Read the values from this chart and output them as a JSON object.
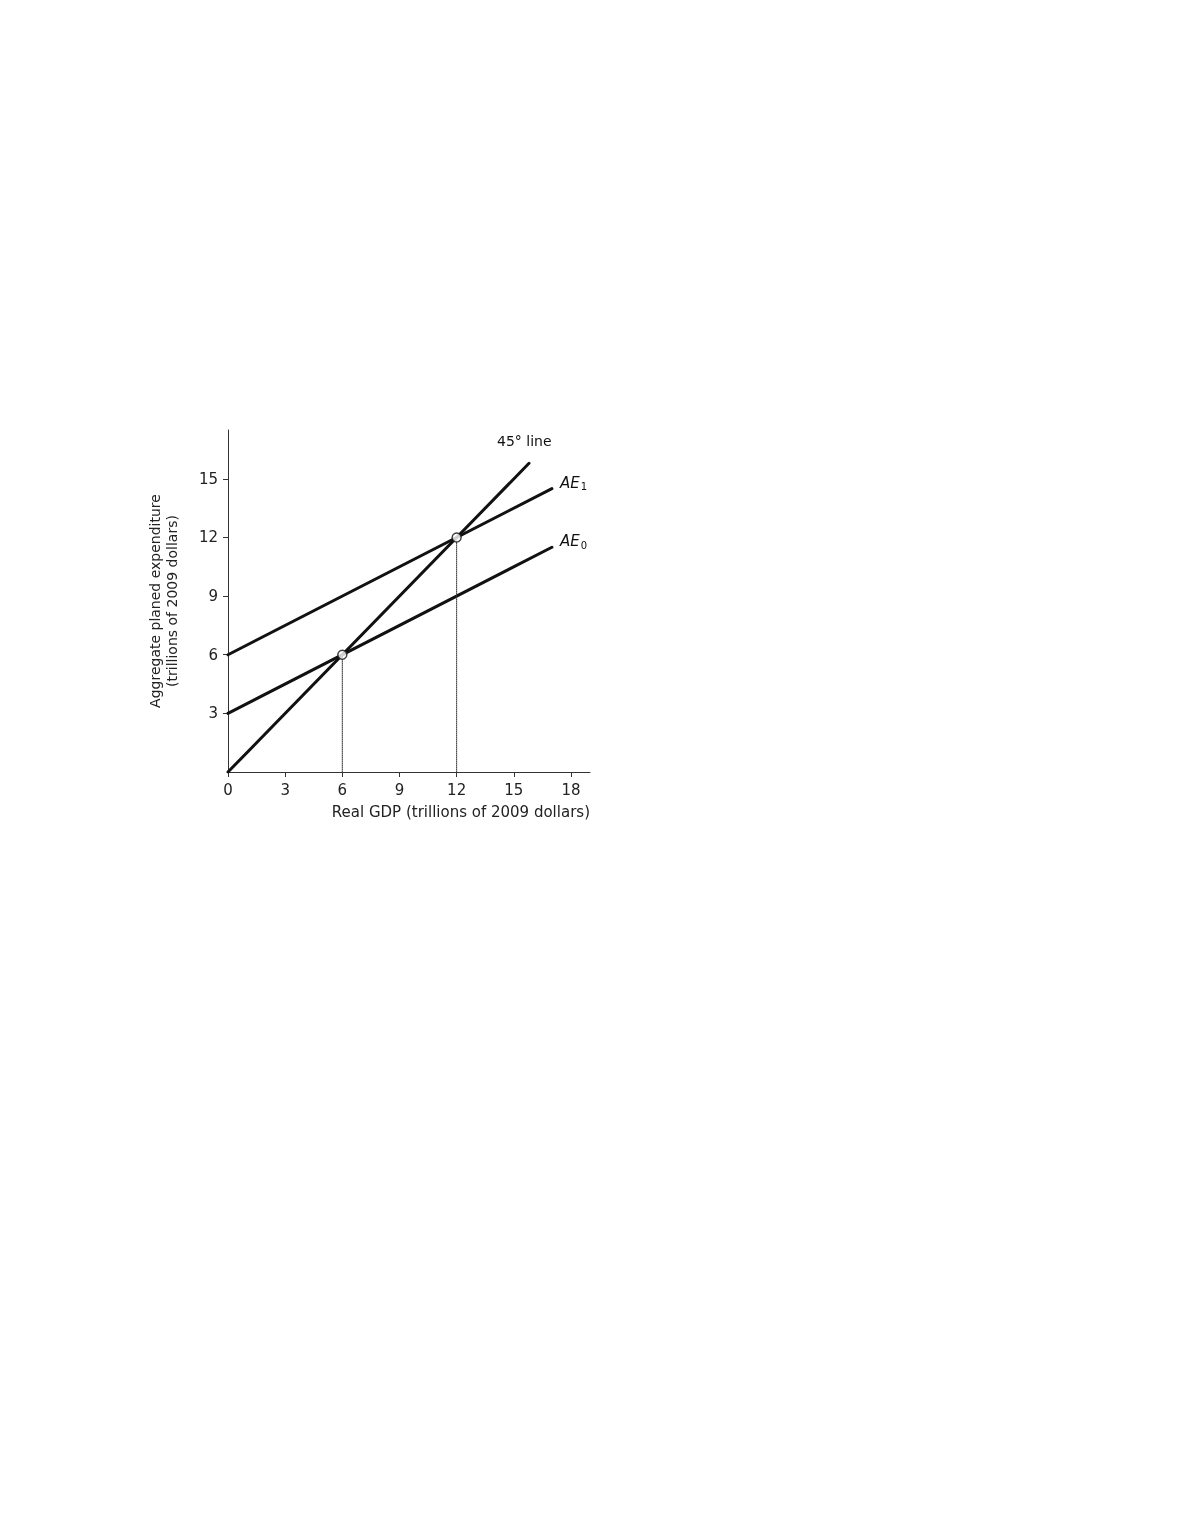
{
  "chart_data": {
    "type": "line",
    "xlabel": "Real GDP (trillions of 2009 dollars)",
    "ylabel": "Aggregate planed expenditure\n(trillions of 2009 dollars)",
    "xlim": [
      0,
      19
    ],
    "xticks": [
      0,
      3,
      6,
      9,
      12,
      15,
      18
    ],
    "ylim": [
      0,
      17.5
    ],
    "yticks": [
      3,
      6,
      9,
      12,
      15
    ],
    "marker": "none",
    "line_style": "solid",
    "series": [
      {
        "name": "45° line",
        "color": "#111111",
        "x": [
          0,
          15.8
        ],
        "values": [
          0,
          15.8
        ]
      },
      {
        "name": "AE$_{1}$",
        "color": "#111111",
        "x": [
          0,
          17
        ],
        "values": [
          6,
          14.5
        ]
      },
      {
        "name": "AE$_{0}$",
        "color": "#111111",
        "x": [
          0,
          17
        ],
        "values": [
          3,
          11.5
        ]
      },
      {
        "color": "#333333",
        "x": [
          6,
          6
        ],
        "values": [
          0,
          6
        ],
        "line_style": "dotted"
      },
      {
        "color": "#333333",
        "x": [
          12,
          12
        ],
        "values": [
          0,
          12
        ],
        "line_style": "dotted"
      },
      {
        "type": "scatter",
        "color": "#111111",
        "x": [
          6,
          12
        ],
        "values": [
          6,
          12
        ],
        "marker": "circle"
      }
    ]
  }
}
